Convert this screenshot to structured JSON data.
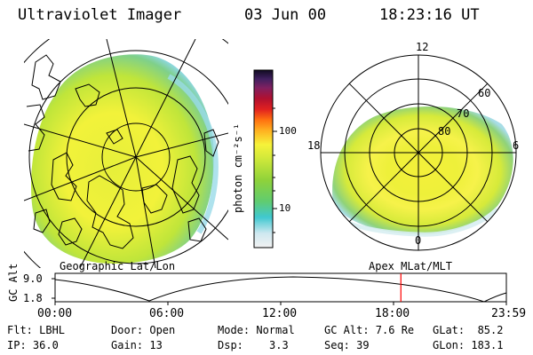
{
  "header": {
    "instrument": "Ultraviolet Imager",
    "date": "03 Jun 00",
    "time": "18:23:16 UT"
  },
  "left_panel": {
    "label": "Geographic Lat/Lon"
  },
  "right_panel": {
    "label": "Apex MLat/MLT",
    "mlt_labels": {
      "top": "12",
      "left": "18",
      "right": "6",
      "bottom": "0"
    },
    "lat_labels": [
      "60",
      "70",
      "80"
    ]
  },
  "colorbar": {
    "unit": "photon cm⁻²s⁻¹",
    "ticks": [
      "100",
      "10"
    ],
    "scale": "log"
  },
  "orbit_plot": {
    "ylabel": "GC Alt",
    "yticks": [
      "9.0",
      "1.8"
    ],
    "xticks": [
      "00:00",
      "06:00",
      "12:00",
      "18:00",
      "23:59"
    ],
    "current_time_fraction": 0.7663,
    "marker_color": "#ff0000"
  },
  "info": {
    "filter": "Flt: LBHL",
    "ip": "IP: 36.0",
    "door": "Door: Open",
    "gain": "Gain: 13",
    "mode": "Mode: Normal",
    "dsp_label": "Dsp:",
    "dsp_value": "3.3",
    "gc_alt": "GC Alt: 7.6 Re",
    "seq": "Seq: 39",
    "glat": "GLat:  85.2",
    "glon": "GLon: 183.1"
  }
}
